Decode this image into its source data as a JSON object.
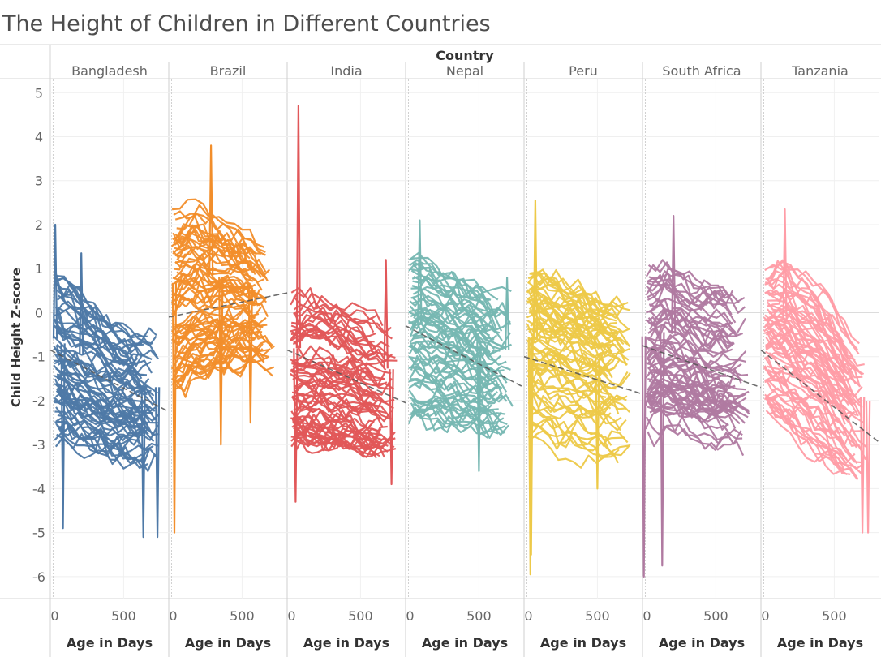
{
  "chart_data": {
    "type": "line",
    "title": "The Height of Children in Different Countries",
    "column_header": "Country",
    "ylabel": "Child Height Z-score",
    "xlabel": "Age in Days",
    "ylim": [
      -6.5,
      5.3
    ],
    "yticks": [
      5,
      4,
      3,
      2,
      1,
      0,
      -1,
      -2,
      -3,
      -4,
      -5,
      -6
    ],
    "xlim": [
      -20,
      820
    ],
    "xticks": [
      0,
      500
    ],
    "gridlines": true,
    "trend_line": "dashed",
    "panels": [
      {
        "country": "Bangladesh",
        "color": "#4e79a7",
        "x_range": [
          0,
          760
        ],
        "band": {
          "x": [
            0,
            150,
            400,
            600,
            760
          ],
          "lo": [
            -2.9,
            -3.2,
            -3.4,
            -3.5,
            -3.5
          ],
          "hi": [
            1.0,
            0.7,
            0.0,
            -0.4,
            -0.5
          ]
        },
        "trend": {
          "x": [
            -20,
            820
          ],
          "y": [
            -0.85,
            -2.25
          ]
        },
        "extremes": [
          [
            15,
            2.0
          ],
          [
            70,
            -4.9
          ],
          [
            200,
            1.35
          ],
          [
            640,
            -5.1
          ],
          [
            740,
            -5.1
          ]
        ]
      },
      {
        "country": "Brazil",
        "color": "#f28e2b",
        "x_range": [
          0,
          730
        ],
        "band": {
          "x": [
            0,
            150,
            400,
            600,
            730
          ],
          "lo": [
            -2.3,
            -1.9,
            -1.5,
            -1.4,
            -1.5
          ],
          "hi": [
            2.6,
            2.8,
            2.3,
            1.8,
            1.5
          ]
        },
        "trend": {
          "x": [
            -20,
            820
          ],
          "y": [
            -0.1,
            0.45
          ]
        },
        "extremes": [
          [
            20,
            -5.0
          ],
          [
            280,
            3.8
          ],
          [
            350,
            -3.0
          ],
          [
            560,
            -2.5
          ]
        ]
      },
      {
        "country": "India",
        "color": "#e15759",
        "x_range": [
          0,
          760
        ],
        "band": {
          "x": [
            0,
            150,
            400,
            600,
            760
          ],
          "lo": [
            -3.1,
            -3.3,
            -3.3,
            -3.4,
            -3.4
          ],
          "hi": [
            0.7,
            0.9,
            0.6,
            0.2,
            0.1
          ]
        },
        "trend": {
          "x": [
            -20,
            820
          ],
          "y": [
            -0.85,
            -2.05
          ]
        },
        "extremes": [
          [
            60,
            4.7
          ],
          [
            40,
            -4.3
          ],
          [
            680,
            1.2
          ],
          [
            720,
            -3.9
          ]
        ]
      },
      {
        "country": "Nepal",
        "color": "#76b7b2",
        "x_range": [
          0,
          740
        ],
        "band": {
          "x": [
            0,
            150,
            400,
            600,
            740
          ],
          "lo": [
            -2.6,
            -2.7,
            -2.8,
            -2.9,
            -2.9
          ],
          "hi": [
            1.4,
            1.4,
            1.0,
            0.6,
            0.5
          ]
        },
        "trend": {
          "x": [
            -20,
            820
          ],
          "y": [
            -0.3,
            -1.7
          ]
        },
        "extremes": [
          [
            80,
            2.1
          ],
          [
            500,
            -3.6
          ],
          [
            700,
            0.8
          ]
        ]
      },
      {
        "country": "Peru",
        "color": "#edc948",
        "x_range": [
          0,
          740
        ],
        "band": {
          "x": [
            0,
            150,
            400,
            600,
            740
          ],
          "lo": [
            -3.0,
            -3.2,
            -3.4,
            -3.5,
            -3.5
          ],
          "hi": [
            1.1,
            1.0,
            0.7,
            0.4,
            0.3
          ]
        },
        "trend": {
          "x": [
            -20,
            820
          ],
          "y": [
            -1.0,
            -1.85
          ]
        },
        "extremes": [
          [
            60,
            2.55
          ],
          [
            25,
            -5.95
          ],
          [
            30,
            -5.5
          ],
          [
            500,
            -4.0
          ]
        ]
      },
      {
        "country": "South Africa",
        "color": "#b07aa1",
        "x_range": [
          0,
          740
        ],
        "band": {
          "x": [
            0,
            150,
            400,
            600,
            740
          ],
          "lo": [
            -3.0,
            -3.0,
            -3.2,
            -3.3,
            -3.3
          ],
          "hi": [
            1.1,
            1.3,
            0.9,
            0.7,
            0.6
          ]
        },
        "trend": {
          "x": [
            -20,
            820
          ],
          "y": [
            -0.75,
            -1.7
          ]
        },
        "extremes": [
          [
            200,
            2.2
          ],
          [
            120,
            -5.75
          ],
          [
            -10,
            -6.0
          ]
        ]
      },
      {
        "country": "Tanzania",
        "color": "#ff9da7",
        "x_range": [
          0,
          740
        ],
        "band": {
          "x": [
            0,
            150,
            400,
            600,
            740
          ],
          "lo": [
            -2.6,
            -3.0,
            -3.6,
            -4.1,
            -4.3
          ],
          "hi": [
            1.4,
            1.7,
            1.0,
            0.0,
            -0.5
          ]
        },
        "trend": {
          "x": [
            -20,
            820
          ],
          "y": [
            -0.85,
            -2.95
          ]
        },
        "extremes": [
          [
            150,
            2.35
          ],
          [
            700,
            -5.0
          ],
          [
            740,
            -5.0
          ]
        ]
      }
    ]
  }
}
